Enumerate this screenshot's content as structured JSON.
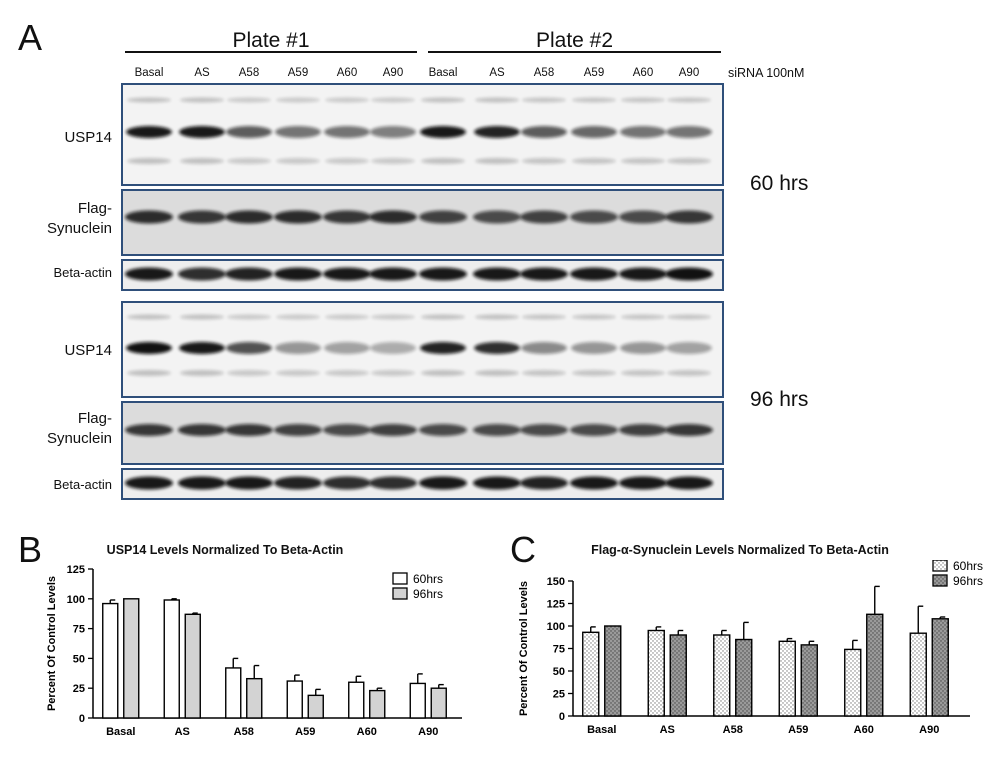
{
  "panel_a": {
    "letter": "A",
    "plates": [
      "Plate #1",
      "Plate #2"
    ],
    "lanes": [
      "Basal",
      "AS",
      "A58",
      "A59",
      "A60",
      "A90",
      "Basal",
      "AS",
      "A58",
      "A59",
      "A60",
      "A90"
    ],
    "sirna_label": "siRNA 100nM",
    "times": [
      "60 hrs",
      "96 hrs"
    ],
    "blot_labels": {
      "usp14": "USP14",
      "flag_line1": "Flag-",
      "flag_line2": "Synuclein",
      "actin": "Beta-actin"
    }
  },
  "chart_data": [
    {
      "panel": "B",
      "type": "bar",
      "title": "USP14 Levels Normalized To Beta-Actin",
      "ylabel": "Percent Of Control Levels",
      "xlabel": "",
      "ylim": [
        0,
        125
      ],
      "yticks": [
        0,
        25,
        50,
        75,
        100,
        125
      ],
      "categories": [
        "Basal",
        "AS",
        "A58",
        "A59",
        "A60",
        "A90"
      ],
      "series": [
        {
          "name": "60hrs",
          "values": [
            96,
            99,
            42,
            31,
            30,
            29
          ],
          "errors": [
            3,
            1,
            8,
            5,
            5,
            8
          ],
          "fill": "#ffffff"
        },
        {
          "name": "96hrs",
          "values": [
            100,
            87,
            33,
            19,
            23,
            25
          ],
          "errors": [
            0,
            1,
            11,
            5,
            2,
            3
          ],
          "fill": "#d3d3d3"
        }
      ],
      "legend": "top-right"
    },
    {
      "panel": "C",
      "type": "bar",
      "title": "Flag-α-Synuclein Levels Normalized To Beta-Actin",
      "ylabel": "Percent Of Control Levels",
      "xlabel": "",
      "ylim": [
        0,
        150
      ],
      "yticks": [
        0,
        25,
        50,
        75,
        100,
        125,
        150
      ],
      "categories": [
        "Basal",
        "AS",
        "A58",
        "A59",
        "A60",
        "A90"
      ],
      "series": [
        {
          "name": "60hrs",
          "values": [
            93,
            95,
            90,
            83,
            74,
            92
          ],
          "errors": [
            6,
            4,
            5,
            3,
            10,
            30
          ],
          "fill": "dotted-light"
        },
        {
          "name": "96hrs",
          "values": [
            100,
            90,
            85,
            79,
            113,
            108
          ],
          "errors": [
            0,
            5,
            19,
            4,
            31,
            2
          ],
          "fill": "dotted-dark"
        }
      ],
      "legend": "top-right"
    }
  ]
}
